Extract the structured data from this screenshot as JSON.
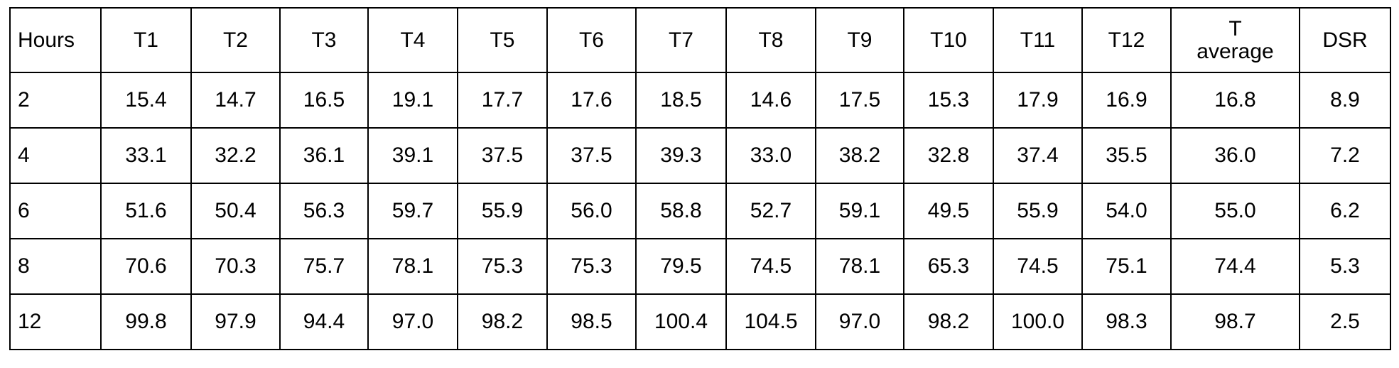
{
  "table": {
    "header": [
      "Hours",
      "T1",
      "T2",
      "T3",
      "T4",
      "T5",
      "T6",
      "T7",
      "T8",
      "T9",
      "T10",
      "T11",
      "T12",
      "T average",
      "DSR"
    ],
    "rows": [
      [
        "2",
        "15.4",
        "14.7",
        "16.5",
        "19.1",
        "17.7",
        "17.6",
        "18.5",
        "14.6",
        "17.5",
        "15.3",
        "17.9",
        "16.9",
        "16.8",
        "8.9"
      ],
      [
        "4",
        "33.1",
        "32.2",
        "36.1",
        "39.1",
        "37.5",
        "37.5",
        "39.3",
        "33.0",
        "38.2",
        "32.8",
        "37.4",
        "35.5",
        "36.0",
        "7.2"
      ],
      [
        "6",
        "51.6",
        "50.4",
        "56.3",
        "59.7",
        "55.9",
        "56.0",
        "58.8",
        "52.7",
        "59.1",
        "49.5",
        "55.9",
        "54.0",
        "55.0",
        "6.2"
      ],
      [
        "8",
        "70.6",
        "70.3",
        "75.7",
        "78.1",
        "75.3",
        "75.3",
        "79.5",
        "74.5",
        "78.1",
        "65.3",
        "74.5",
        "75.1",
        "74.4",
        "5.3"
      ],
      [
        "12",
        "99.8",
        "97.9",
        "94.4",
        "97.0",
        "98.2",
        "98.5",
        "100.4",
        "104.5",
        "97.0",
        "98.2",
        "100.0",
        "98.3",
        "98.7",
        "2.5"
      ]
    ]
  }
}
